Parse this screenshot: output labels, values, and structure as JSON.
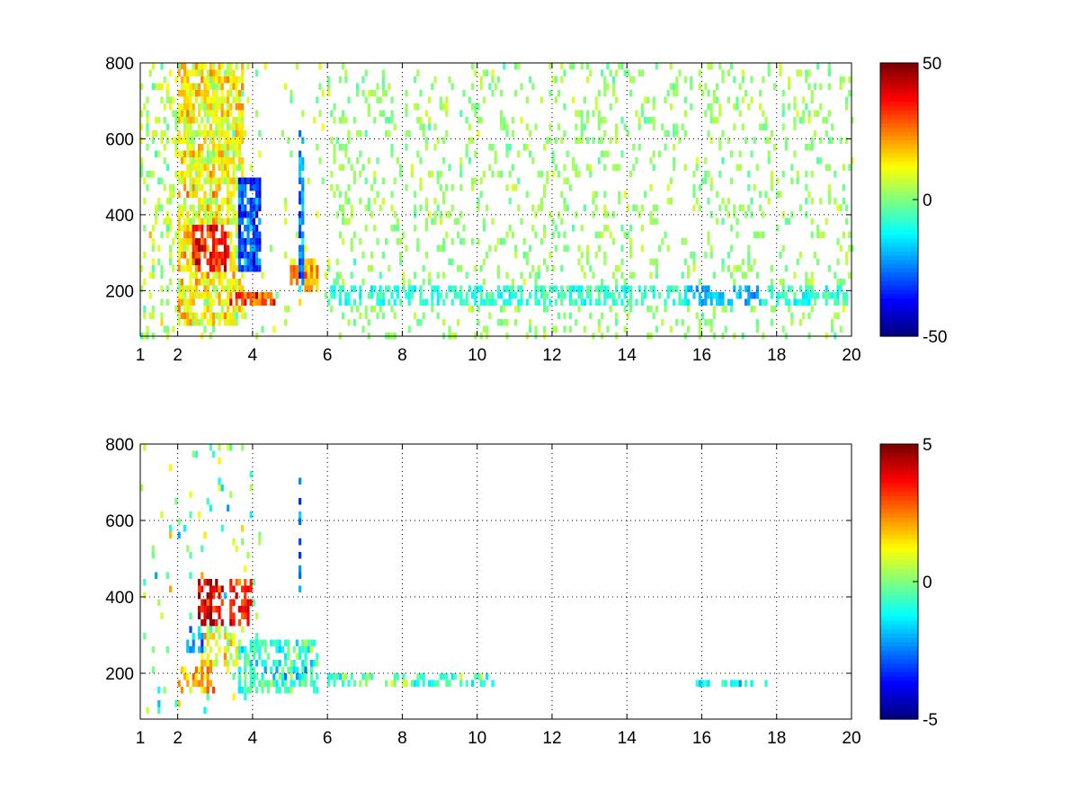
{
  "chart_data": [
    {
      "type": "heatmap",
      "colormap": "jet",
      "grid": true,
      "grid_style": "dotted",
      "x_range": [
        1,
        20
      ],
      "y_range": [
        80,
        800
      ],
      "x_ticks": [
        1,
        2,
        4,
        6,
        8,
        10,
        12,
        14,
        16,
        18,
        20
      ],
      "x_tick_labels": [
        "1",
        "2",
        "4",
        "6",
        "8",
        "10",
        "12",
        "14",
        "16",
        "18",
        "20"
      ],
      "y_ticks": [
        200,
        400,
        600,
        800
      ],
      "y_tick_labels": [
        "200",
        "400",
        "600",
        "800"
      ],
      "colorbar": {
        "range": [
          -50,
          50
        ],
        "ticks": [
          50,
          0,
          -50
        ],
        "tick_labels": [
          "50",
          "0",
          "-50"
        ]
      },
      "features": [
        {
          "x": [
            2.4,
            3.4
          ],
          "y": [
            250,
            380
          ],
          "value": 35
        },
        {
          "x": [
            2.0,
            3.8
          ],
          "y": [
            100,
            800
          ],
          "value": 12
        },
        {
          "x": [
            3.6,
            4.2
          ],
          "y": [
            250,
            500
          ],
          "value": -30
        },
        {
          "x": [
            3.4,
            4.6
          ],
          "y": [
            160,
            200
          ],
          "value": 30
        },
        {
          "x": [
            5.0,
            5.8
          ],
          "y": [
            190,
            290
          ],
          "value": 22
        },
        {
          "x": [
            5.2,
            5.35
          ],
          "y": [
            200,
            620
          ],
          "value": -25
        },
        {
          "x": [
            6.0,
            20.0
          ],
          "y": [
            160,
            210
          ],
          "value": -8
        },
        {
          "x": [
            15.6,
            17.6
          ],
          "y": [
            155,
            215
          ],
          "value": -20
        },
        {
          "x": [
            6.0,
            20.0
          ],
          "y": [
            80,
            800
          ],
          "value": 2
        }
      ]
    },
    {
      "type": "heatmap",
      "colormap": "jet",
      "grid": true,
      "grid_style": "dotted",
      "x_range": [
        1,
        20
      ],
      "y_range": [
        80,
        800
      ],
      "x_ticks": [
        1,
        2,
        4,
        6,
        8,
        10,
        12,
        14,
        16,
        18,
        20
      ],
      "x_tick_labels": [
        "1",
        "2",
        "4",
        "6",
        "8",
        "10",
        "12",
        "14",
        "16",
        "18",
        "20"
      ],
      "y_ticks": [
        200,
        400,
        600,
        800
      ],
      "y_tick_labels": [
        "200",
        "400",
        "600",
        "800"
      ],
      "colorbar": {
        "range": [
          -5,
          5
        ],
        "ticks": [
          5,
          0,
          -5
        ],
        "tick_labels": [
          "5",
          "0",
          "-5"
        ]
      },
      "features": [
        {
          "x": [
            2.5,
            3.2
          ],
          "y": [
            330,
            450
          ],
          "value": 4.2
        },
        {
          "x": [
            3.4,
            4.0
          ],
          "y": [
            320,
            440
          ],
          "value": 3.5
        },
        {
          "x": [
            2.2,
            2.7
          ],
          "y": [
            260,
            320
          ],
          "value": -2.2
        },
        {
          "x": [
            2.6,
            3.6
          ],
          "y": [
            220,
            320
          ],
          "value": 1.0
        },
        {
          "x": [
            2.0,
            3.0
          ],
          "y": [
            140,
            220
          ],
          "value": 2.0
        },
        {
          "x": [
            3.6,
            5.8
          ],
          "y": [
            150,
            280
          ],
          "value": -0.8
        },
        {
          "x": [
            5.2,
            5.3
          ],
          "y": [
            420,
            720
          ],
          "value": -2.5
        },
        {
          "x": [
            6.0,
            10.5
          ],
          "y": [
            160,
            200
          ],
          "value": -0.5
        },
        {
          "x": [
            15.8,
            17.9
          ],
          "y": [
            160,
            190
          ],
          "value": -1.0
        }
      ]
    }
  ]
}
